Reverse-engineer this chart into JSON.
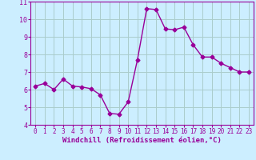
{
  "x": [
    0,
    1,
    2,
    3,
    4,
    5,
    6,
    7,
    8,
    9,
    10,
    11,
    12,
    13,
    14,
    15,
    16,
    17,
    18,
    19,
    20,
    21,
    22,
    23
  ],
  "y": [
    6.2,
    6.35,
    6.0,
    6.6,
    6.2,
    6.15,
    6.05,
    5.7,
    4.65,
    4.6,
    5.3,
    7.7,
    10.6,
    10.55,
    9.45,
    9.4,
    9.55,
    8.55,
    7.85,
    7.85,
    7.5,
    7.25,
    7.0,
    7.0
  ],
  "line_color": "#990099",
  "marker": "D",
  "marker_size": 2.5,
  "bg_color": "#cceeff",
  "grid_color": "#aacccc",
  "xlabel": "Windchill (Refroidissement éolien,°C)",
  "ylim": [
    4,
    11
  ],
  "xlim": [
    -0.5,
    23.5
  ],
  "yticks": [
    4,
    5,
    6,
    7,
    8,
    9,
    10,
    11
  ],
  "xticks": [
    0,
    1,
    2,
    3,
    4,
    5,
    6,
    7,
    8,
    9,
    10,
    11,
    12,
    13,
    14,
    15,
    16,
    17,
    18,
    19,
    20,
    21,
    22,
    23
  ],
  "xlabel_fontsize": 6.5,
  "tick_fontsize": 5.5,
  "linewidth": 1.0
}
